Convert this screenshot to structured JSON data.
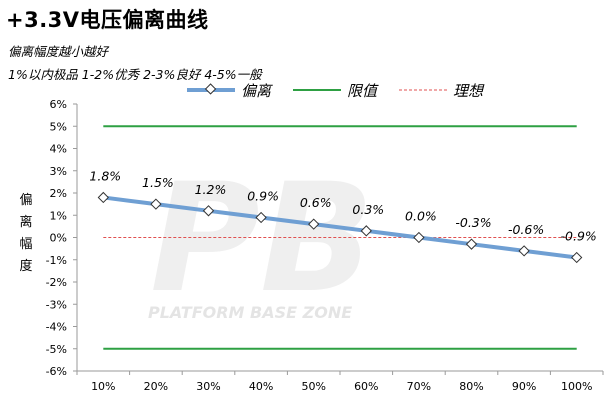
{
  "header": {
    "title": "+3.3V电压偏离曲线",
    "note1": "偏离幅度越小越好",
    "note2": "1%以内极品 1-2%优秀 2-3%良好 4-5%一般"
  },
  "watermark": {
    "logo": "PB",
    "text": "PLATFORM BASE ZONE"
  },
  "colors": {
    "series": "#6f9fd3",
    "limit": "#2ea043",
    "ideal": "#e05050",
    "axis": "#9a9a9a"
  },
  "chart_data": {
    "type": "line",
    "ylabel": "偏离幅度",
    "ylim": [
      -6,
      6
    ],
    "y_ticks": [
      "6%",
      "5%",
      "4%",
      "3%",
      "2%",
      "1%",
      "0%",
      "-1%",
      "-2%",
      "-3%",
      "-4%",
      "-5%",
      "-6%"
    ],
    "categories": [
      "10%",
      "20%",
      "30%",
      "40%",
      "50%",
      "60%",
      "70%",
      "80%",
      "90%",
      "100%"
    ],
    "legend_position": "top",
    "series": [
      {
        "name": "偏离",
        "values": [
          1.8,
          1.5,
          1.2,
          0.9,
          0.6,
          0.3,
          0.0,
          -0.3,
          -0.6,
          -0.9
        ],
        "labels": [
          "1.8%",
          "1.5%",
          "1.2%",
          "0.9%",
          "0.6%",
          "0.3%",
          "0.0%",
          "-0.3%",
          "-0.6%",
          "-0.9%"
        ]
      },
      {
        "name": "限值",
        "values_upper": 5,
        "values_lower": -5
      },
      {
        "name": "理想",
        "values": 0
      }
    ]
  }
}
